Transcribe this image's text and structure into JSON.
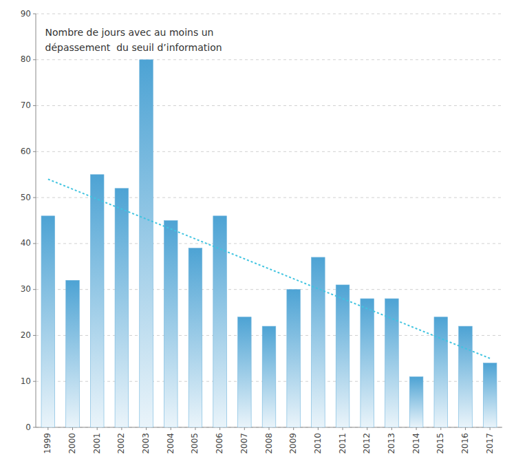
{
  "chart_data": {
    "type": "bar",
    "categories": [
      "1999",
      "2000",
      "2001",
      "2002",
      "2003",
      "2004",
      "2005",
      "2006",
      "2007",
      "2008",
      "2009",
      "2010",
      "2011",
      "2012",
      "2013",
      "2014",
      "2015",
      "2016",
      "2017"
    ],
    "values": [
      46,
      32,
      55,
      52,
      80,
      45,
      39,
      46,
      24,
      22,
      30,
      37,
      31,
      28,
      28,
      11,
      24,
      22,
      14
    ],
    "color": "#4da3d4",
    "trend": {
      "values": [
        54,
        15
      ],
      "color": "#40c4e0",
      "line_style": "dotted"
    },
    "annotation": "Nombre de jours avec au moins un\ndépassement  du seuil d’information",
    "ylim": [
      0,
      90
    ],
    "yticks": [
      0,
      10,
      20,
      30,
      40,
      50,
      60,
      70,
      80,
      90
    ],
    "grid": true
  }
}
